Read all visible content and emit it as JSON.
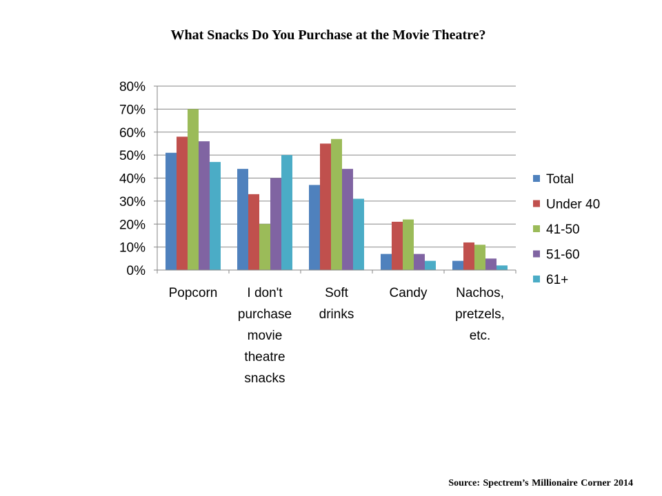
{
  "page": {
    "title": "What Snacks Do You Purchase at the Movie Theatre?",
    "source": "Source: Spectrem’s Millionaire Corner 2014"
  },
  "chart_data": {
    "type": "bar",
    "title": "What Snacks Do You Purchase at the Movie Theatre?",
    "xlabel": "",
    "ylabel": "",
    "ylim": [
      0,
      80
    ],
    "yticks": [
      0,
      10,
      20,
      30,
      40,
      50,
      60,
      70,
      80
    ],
    "ytick_labels": [
      "0%",
      "10%",
      "20%",
      "30%",
      "40%",
      "50%",
      "60%",
      "70%",
      "80%"
    ],
    "grid": true,
    "legend_position": "right",
    "categories": [
      [
        "Popcorn"
      ],
      [
        "I don't",
        "purchase",
        "movie",
        "theatre",
        "snacks"
      ],
      [
        "Soft",
        "drinks"
      ],
      [
        "Candy"
      ],
      [
        "Nachos,",
        "pretzels,",
        "etc."
      ]
    ],
    "series": [
      {
        "name": "Total",
        "color": "#4F81BD",
        "values": [
          51,
          44,
          37,
          7,
          4
        ]
      },
      {
        "name": "Under 40",
        "color": "#C0504D",
        "values": [
          58,
          33,
          55,
          21,
          12
        ]
      },
      {
        "name": "41-50",
        "color": "#9BBB59",
        "values": [
          70,
          20,
          57,
          22,
          11
        ]
      },
      {
        "name": "51-60",
        "color": "#8064A2",
        "values": [
          56,
          40,
          44,
          7,
          5
        ]
      },
      {
        "name": "61+",
        "color": "#4BACC6",
        "values": [
          47,
          50,
          31,
          4,
          2
        ]
      }
    ]
  }
}
